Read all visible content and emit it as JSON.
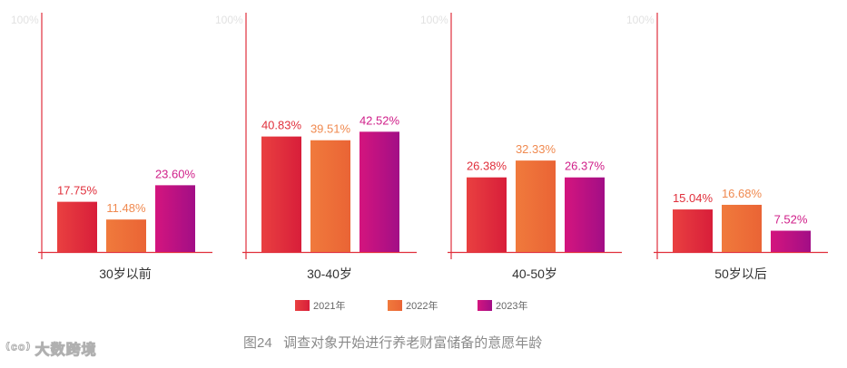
{
  "chart_data": {
    "type": "bar",
    "y_max_label": "100%",
    "ylim": [
      0,
      100
    ],
    "categories": [
      "30岁以前",
      "30-40岁",
      "40-50岁",
      "50岁以后"
    ],
    "series": [
      {
        "name": "2021年",
        "values": [
          17.75,
          40.83,
          26.38,
          15.04
        ],
        "labels": [
          "17.75%",
          "40.83%",
          "26.38%",
          "15.04%"
        ],
        "color": "#e0303c"
      },
      {
        "name": "2022年",
        "values": [
          11.48,
          39.51,
          32.33,
          16.68
        ],
        "labels": [
          "11.48%",
          "39.51%",
          "32.33%",
          "16.68%"
        ],
        "color": "#ee6a3a"
      },
      {
        "name": "2023年",
        "values": [
          23.6,
          42.52,
          26.37,
          7.52
        ],
        "labels": [
          "23.60%",
          "42.52%",
          "26.37%",
          "7.52%"
        ],
        "color": "#c7127e"
      }
    ],
    "grid": false,
    "legend_position": "bottom-center"
  },
  "caption": "图24   调查对象开始进行养老财富储备的意愿年龄",
  "watermark": "大数跨境",
  "colors": {
    "axis": "#e0303c",
    "label_2021": "#e0303c",
    "label_2022": "#f08a50",
    "label_2023": "#d0208a"
  }
}
